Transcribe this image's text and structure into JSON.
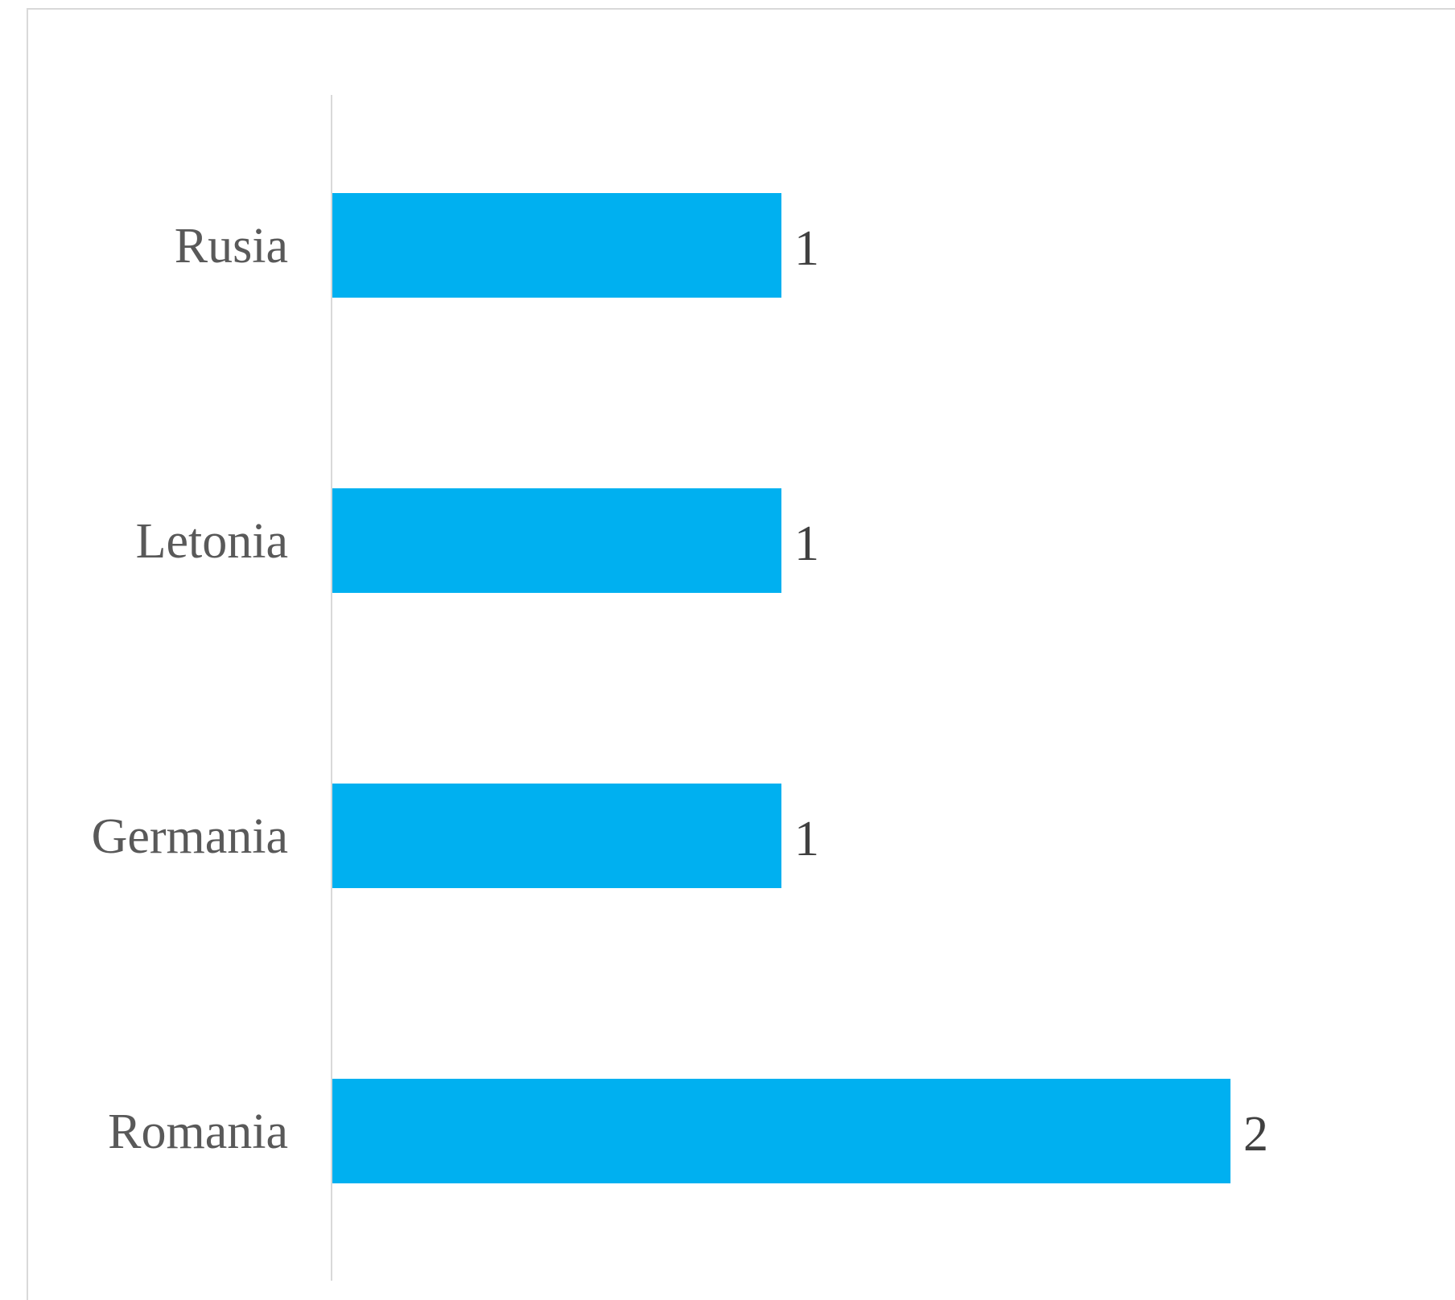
{
  "chart_data": {
    "type": "bar",
    "orientation": "horizontal",
    "categories": [
      "Rusia",
      "Letonia",
      "Germania",
      "Romania"
    ],
    "values": [
      1,
      1,
      1,
      2
    ],
    "data_labels": [
      "1",
      "1",
      "1",
      "2"
    ],
    "title": "",
    "xlabel": "",
    "ylabel": "",
    "xlim": [
      0,
      2
    ],
    "grid": false,
    "legend": "none",
    "colors": {
      "bar": "#00B0F0",
      "axis": "#D9D9D9",
      "label": "#595959"
    }
  }
}
